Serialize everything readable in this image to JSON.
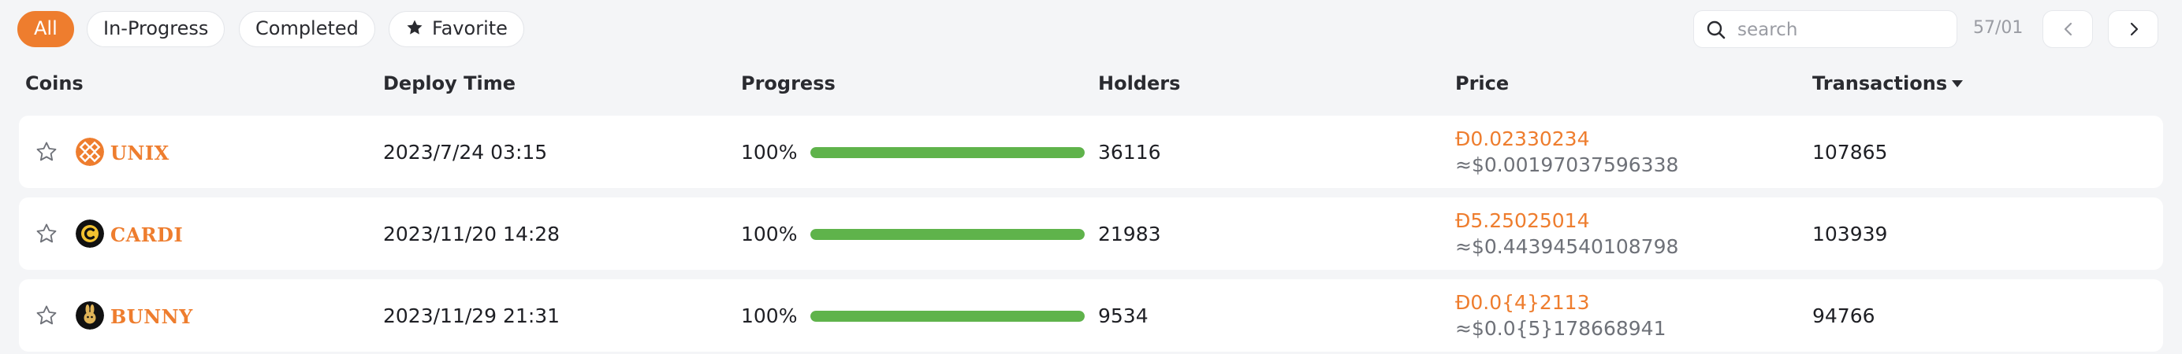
{
  "filters": {
    "all": "All",
    "in_progress": "In-Progress",
    "completed": "Completed",
    "favorite": "Favorite"
  },
  "search": {
    "placeholder": "search",
    "value": ""
  },
  "pagination": {
    "label": "57/01"
  },
  "columns": {
    "coins": "Coins",
    "deploy_time": "Deploy Time",
    "progress": "Progress",
    "holders": "Holders",
    "price": "Price",
    "transactions": "Transactions"
  },
  "colors": {
    "accent": "#ee7d2e",
    "progress": "#5fb34b",
    "price_sub": "#6e7178"
  },
  "rows": [
    {
      "ticker": "UNIX",
      "logo": "unix-logo-icon",
      "deploy_time": "2023/7/24 03:15",
      "progress_label": "100%",
      "progress": 1.0,
      "holders": "36116",
      "price": "Đ0.02330234",
      "price_usd": "≈$0.00197037596338",
      "transactions": "107865"
    },
    {
      "ticker": "CARDI",
      "logo": "cardi-logo-icon",
      "deploy_time": "2023/11/20 14:28",
      "progress_label": "100%",
      "progress": 1.0,
      "holders": "21983",
      "price": "Đ5.25025014",
      "price_usd": "≈$0.44394540108798",
      "transactions": "103939"
    },
    {
      "ticker": "BUNNY",
      "logo": "bunny-logo-icon",
      "deploy_time": "2023/11/29 21:31",
      "progress_label": "100%",
      "progress": 1.0,
      "holders": "9534",
      "price": "Đ0.0{4}2113",
      "price_usd": "≈$0.0{5}178668941",
      "transactions": "94766"
    }
  ]
}
